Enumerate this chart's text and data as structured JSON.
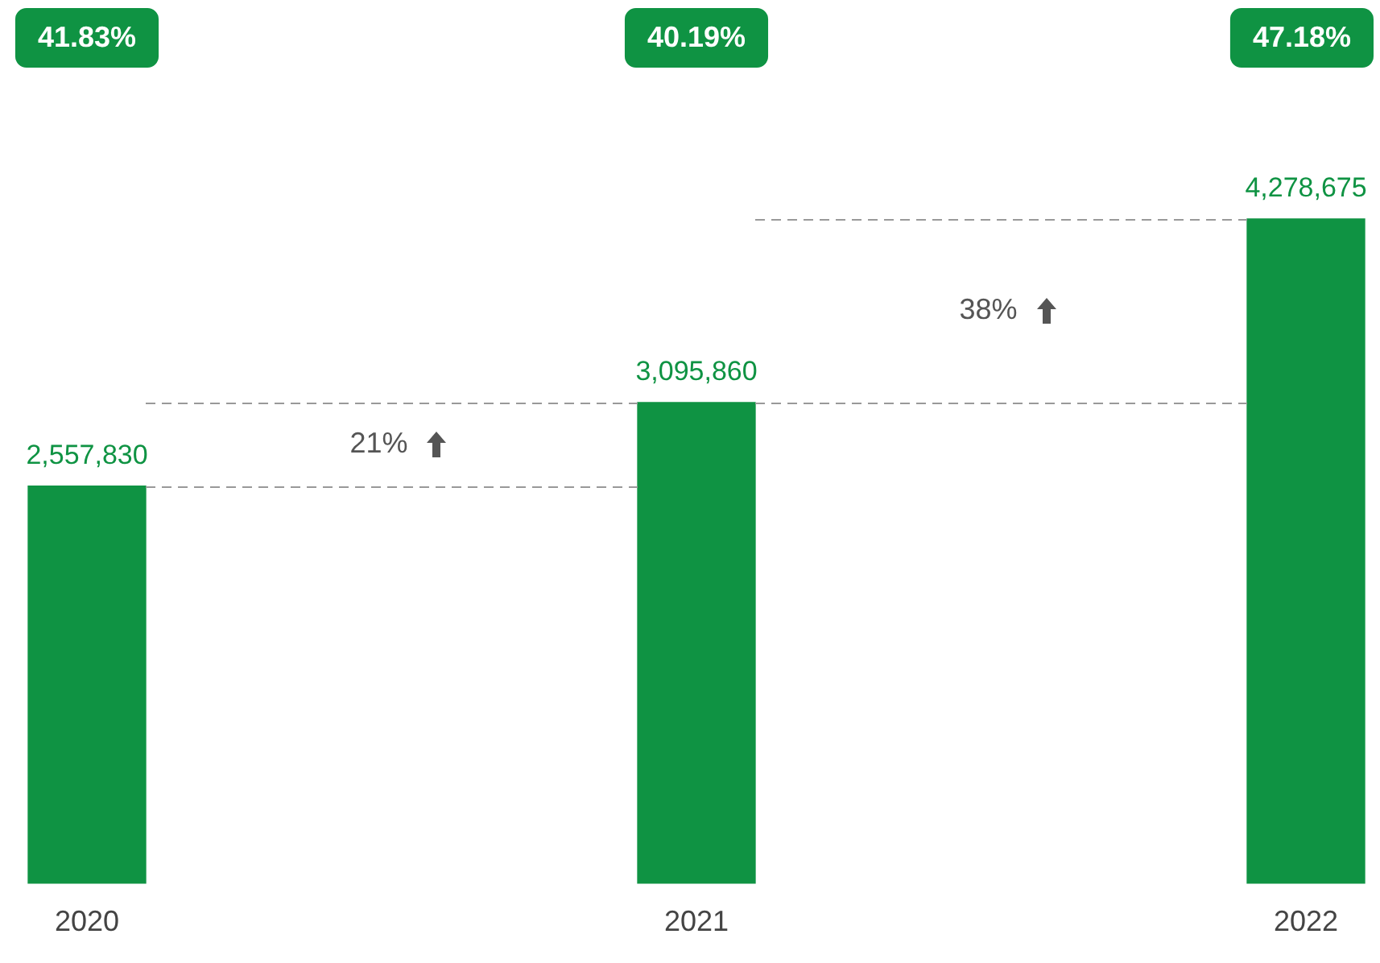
{
  "chart_data": {
    "type": "bar",
    "categories": [
      "2020",
      "2021",
      "2022"
    ],
    "values": [
      2557830,
      3095860,
      4278675
    ],
    "color": "#0f9343",
    "value_labels": [
      "2,557,830",
      "3,095,860",
      "4,278,675"
    ],
    "grid": false,
    "legend": false,
    "annotations": [
      "41.83%",
      "40.19%",
      "47.18%",
      "21%",
      "38%"
    ]
  }
}
